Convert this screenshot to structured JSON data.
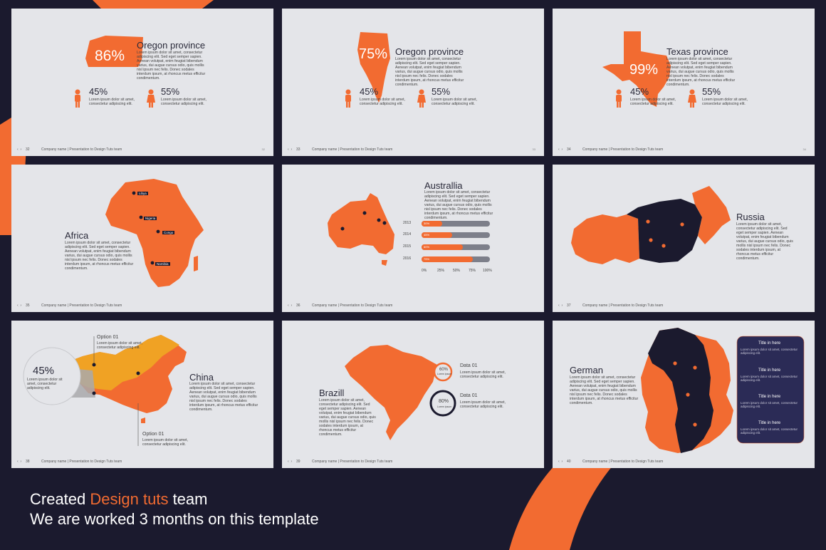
{
  "caption": {
    "line1_pre": "Created ",
    "line1_accent": "Design tuts",
    "line1_post": " team",
    "line2": "We are worked 3 months on this template"
  },
  "colors": {
    "accent": "#f26b31",
    "dark": "#1b1a2e",
    "slide_bg": "#e4e5e9",
    "gold": "#f0a224"
  },
  "lorem": {
    "long": "Lorem ipsum dolor sit amet, consectetur adipiscing elit. Sed eget semper sapien. Aenean volutpat, enim feugiat bibendum varius, dui augue cursus odio, quis mollis nisl ipsum nec felis. Donec sodales interdum ipsum, at rhoncus metus efficitur condimentum.",
    "short": "Lorem ipsum dolor sit amet, consectetur adipiscing elit."
  },
  "footer": {
    "company": "Company name | Presentation to Design Tuts team"
  },
  "slides": {
    "s32": {
      "num": "32",
      "pg": "32",
      "title": "Oregon province",
      "big": "86%",
      "p1": "45%",
      "p2": "55%"
    },
    "s33": {
      "num": "33",
      "pg": "33",
      "title": "Oregon province",
      "big": "75%",
      "p1": "45%",
      "p2": "55%"
    },
    "s34": {
      "num": "34",
      "pg": "34",
      "title": "Texas province",
      "big": "99%",
      "p1": "45%",
      "p2": "55%"
    },
    "s35": {
      "num": "35",
      "title": "Africa",
      "labels": [
        "Libya",
        "Nigeria",
        "Congo",
        "Namibia"
      ]
    },
    "s36": {
      "num": "36",
      "title": "Australlia",
      "bars": [
        {
          "year": "2013",
          "value": 30,
          "label": "30%"
        },
        {
          "year": "2014",
          "value": 45,
          "label": "45%"
        },
        {
          "year": "2015",
          "value": 60,
          "label": "60%"
        },
        {
          "year": "2016",
          "value": 75,
          "label": "75%"
        }
      ],
      "axis": [
        "0%",
        "25%",
        "50%",
        "75%",
        "100%"
      ]
    },
    "s37": {
      "num": "37",
      "title": "Russia"
    },
    "s38": {
      "num": "38",
      "title": "China",
      "big": "45%",
      "opt_top": "Option 01",
      "opt_bottom": "Option 01"
    },
    "s39": {
      "num": "39",
      "title": "Brazill",
      "d1": "Data 01",
      "d2": "Data 01",
      "r1": "60%",
      "r2": "80%",
      "r1_sub": "Lorem ipsum",
      "r2_sub": "Lorem ipsum"
    },
    "s40": {
      "num": "40",
      "title": "German",
      "card_titles": [
        "Title in here",
        "Title in here",
        "Title in here",
        "Title in here"
      ]
    }
  }
}
